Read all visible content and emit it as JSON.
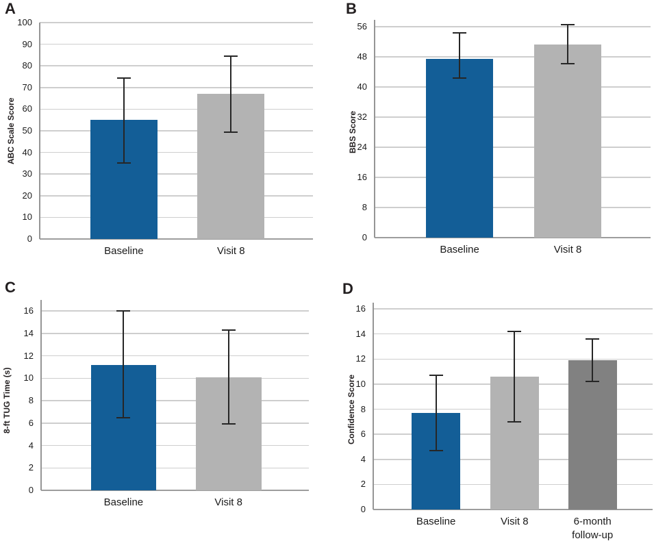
{
  "figure": {
    "description": "Four-panel bar chart figure with error bars",
    "panel_letters": [
      "A",
      "B",
      "C",
      "D"
    ]
  },
  "colors": {
    "bar_blue": "#135e97",
    "bar_light_gray": "#b3b3b3",
    "bar_dark_gray": "#818181",
    "error_bar": "#262626",
    "gridline": "#cecece",
    "axis_line": "#9d9d9d",
    "text": "#231f20"
  },
  "chart_data": [
    {
      "type": "bar",
      "panel_label": "A",
      "title": "",
      "xlabel": "",
      "ylabel": "ABC Scale Score",
      "ylim": [
        0,
        100
      ],
      "ytick_step": 10,
      "grid": true,
      "legend": "none",
      "categories": [
        "Baseline",
        "Visit 8"
      ],
      "values": [
        55,
        67
      ],
      "error_low": [
        35,
        49.5
      ],
      "error_high": [
        74.5,
        84.5
      ],
      "bar_colors": [
        "#135e97",
        "#b3b3b3"
      ]
    },
    {
      "type": "bar",
      "panel_label": "B",
      "title": "",
      "xlabel": "",
      "ylabel": "BBS Score",
      "ylim": [
        0,
        56
      ],
      "ytick_step": 8,
      "grid": true,
      "legend": "none",
      "categories": [
        "Baseline",
        "Visit 8"
      ],
      "values": [
        47.4,
        51.2
      ],
      "error_low": [
        42.3,
        46.2
      ],
      "error_high": [
        54.4,
        56.6
      ],
      "bar_colors": [
        "#135e97",
        "#b3b3b3"
      ]
    },
    {
      "type": "bar",
      "panel_label": "C",
      "title": "",
      "xlabel": "",
      "ylabel": "8-ft TUG Time (s)",
      "ylim": [
        0,
        16
      ],
      "ytick_step": 2,
      "grid": true,
      "legend": "none",
      "categories": [
        "Baseline",
        "Visit 8"
      ],
      "values": [
        11.2,
        10.1
      ],
      "error_low": [
        6.5,
        5.9
      ],
      "error_high": [
        16,
        14.3
      ],
      "bar_colors": [
        "#135e97",
        "#b3b3b3"
      ]
    },
    {
      "type": "bar",
      "panel_label": "D",
      "title": "",
      "xlabel": "",
      "ylabel": "Confidence Score",
      "ylim": [
        0,
        16
      ],
      "ytick_step": 2,
      "grid": true,
      "legend": "none",
      "categories": [
        "Baseline",
        "Visit 8",
        "6-month follow-up"
      ],
      "values": [
        7.7,
        10.6,
        11.9
      ],
      "error_low": [
        4.7,
        7.0,
        10.2
      ],
      "error_high": [
        10.7,
        14.2,
        13.6
      ],
      "bar_colors": [
        "#135e97",
        "#b3b3b3",
        "#818181"
      ]
    }
  ]
}
